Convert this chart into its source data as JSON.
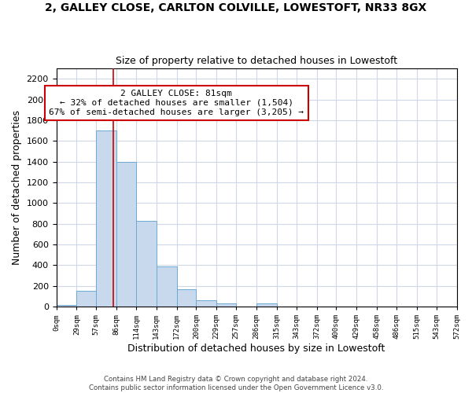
{
  "title": "2, GALLEY CLOSE, CARLTON COLVILLE, LOWESTOFT, NR33 8GX",
  "subtitle": "Size of property relative to detached houses in Lowestoft",
  "xlabel": "Distribution of detached houses by size in Lowestoft",
  "ylabel": "Number of detached properties",
  "bar_color": "#c8d9ed",
  "bar_edge_color": "#6aaad4",
  "vline_x": 81,
  "vline_color": "#cc0000",
  "bin_edges": [
    0,
    29,
    57,
    86,
    114,
    143,
    172,
    200,
    229,
    257,
    286,
    315,
    343,
    372,
    400,
    429,
    458,
    486,
    515,
    543,
    572
  ],
  "bin_labels": [
    "0sqm",
    "29sqm",
    "57sqm",
    "86sqm",
    "114sqm",
    "143sqm",
    "172sqm",
    "200sqm",
    "229sqm",
    "257sqm",
    "286sqm",
    "315sqm",
    "343sqm",
    "372sqm",
    "400sqm",
    "429sqm",
    "458sqm",
    "486sqm",
    "515sqm",
    "543sqm",
    "572sqm"
  ],
  "bar_heights": [
    20,
    155,
    1700,
    1400,
    830,
    390,
    165,
    65,
    30,
    0,
    30,
    0,
    0,
    0,
    0,
    0,
    0,
    0,
    0,
    0
  ],
  "ylim": [
    0,
    2300
  ],
  "yticks": [
    0,
    200,
    400,
    600,
    800,
    1000,
    1200,
    1400,
    1600,
    1800,
    2000,
    2200
  ],
  "annotation_title": "2 GALLEY CLOSE: 81sqm",
  "annotation_line1": "← 32% of detached houses are smaller (1,504)",
  "annotation_line2": "67% of semi-detached houses are larger (3,205) →",
  "footer1": "Contains HM Land Registry data © Crown copyright and database right 2024.",
  "footer2": "Contains public sector information licensed under the Open Government Licence v3.0.",
  "background_color": "#ffffff",
  "grid_color": "#d0d8e8"
}
